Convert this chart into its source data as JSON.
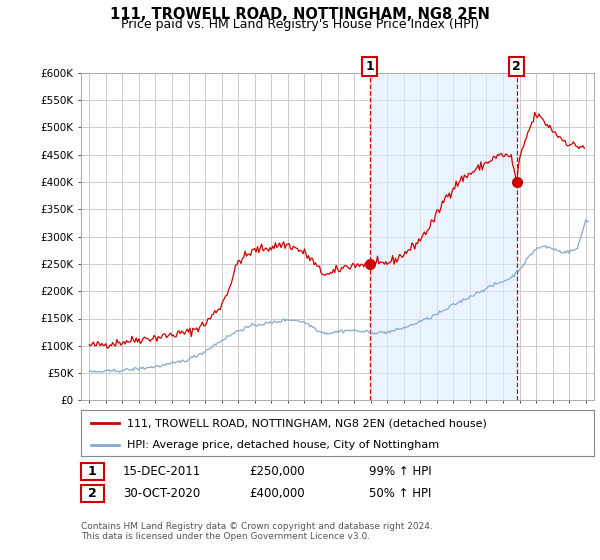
{
  "title": "111, TROWELL ROAD, NOTTINGHAM, NG8 2EN",
  "subtitle": "Price paid vs. HM Land Registry's House Price Index (HPI)",
  "ylabel_ticks": [
    "£0",
    "£50K",
    "£100K",
    "£150K",
    "£200K",
    "£250K",
    "£300K",
    "£350K",
    "£400K",
    "£450K",
    "£500K",
    "£550K",
    "£600K"
  ],
  "ylim": [
    0,
    600000
  ],
  "red_line_label": "111, TROWELL ROAD, NOTTINGHAM, NG8 2EN (detached house)",
  "blue_line_label": "HPI: Average price, detached house, City of Nottingham",
  "annotation1": {
    "label": "1",
    "date": "15-DEC-2011",
    "price": "£250,000",
    "hpi": "99% ↑ HPI"
  },
  "annotation2": {
    "label": "2",
    "date": "30-OCT-2020",
    "price": "£400,000",
    "hpi": "50% ↑ HPI"
  },
  "footnote": "Contains HM Land Registry data © Crown copyright and database right 2024.\nThis data is licensed under the Open Government Licence v3.0.",
  "bg_color": "#ffffff",
  "plot_bg_color": "#ffffff",
  "grid_color": "#cccccc",
  "shade_color": "#ddeeff",
  "red_color": "#cc0000",
  "blue_color": "#88aacc",
  "point1_x": 2011.96,
  "point1_y": 250000,
  "point2_x": 2020.83,
  "point2_y": 400000,
  "xmin": 1994.5,
  "xmax": 2025.5,
  "xticks": [
    1995,
    1996,
    1997,
    1998,
    1999,
    2000,
    2001,
    2002,
    2003,
    2004,
    2005,
    2006,
    2007,
    2008,
    2009,
    2010,
    2011,
    2012,
    2013,
    2014,
    2015,
    2016,
    2017,
    2018,
    2019,
    2020,
    2021,
    2022,
    2023,
    2024,
    2025
  ]
}
